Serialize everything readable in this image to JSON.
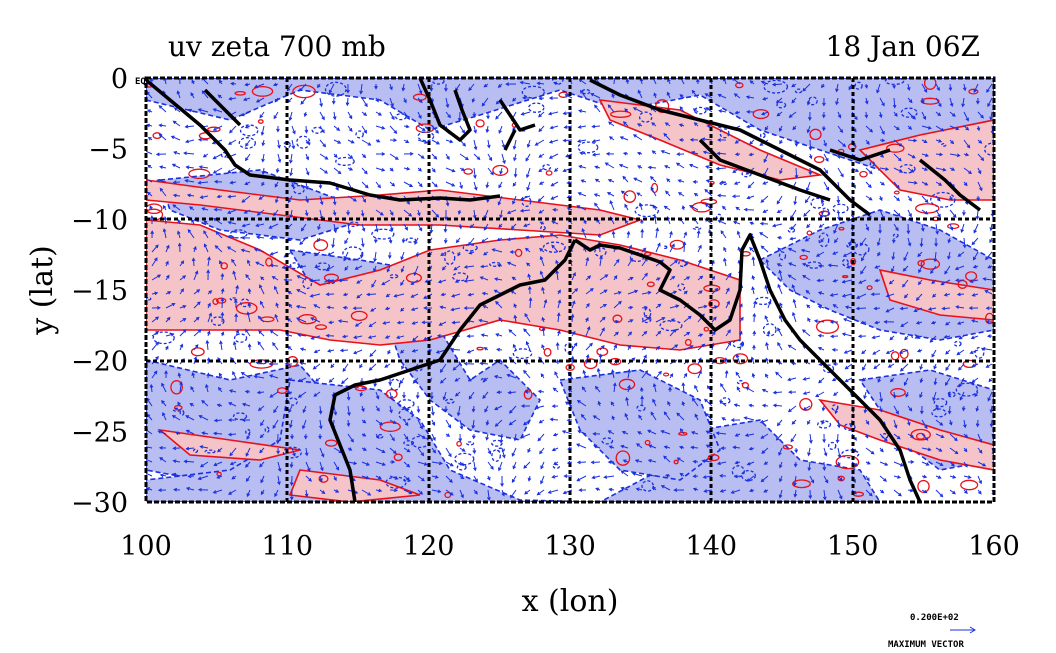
{
  "chart_data": {
    "type": "contour",
    "title": "uv zeta 700 mb",
    "subtitle": "18 Jan 06Z",
    "xlabel": "x (lon)",
    "ylabel": "y (lat)",
    "xlim": [
      100,
      160
    ],
    "ylim": [
      -30,
      0
    ],
    "xticks": [
      100,
      110,
      120,
      130,
      140,
      150,
      160
    ],
    "yticks": [
      0,
      -5,
      -10,
      -15,
      -20,
      -25,
      -30
    ],
    "xtick_labels": [
      "100",
      "110",
      "120",
      "130",
      "140",
      "150",
      "160"
    ],
    "ytick_labels": [
      "0",
      "−5",
      "−10",
      "−15",
      "−20",
      "−25",
      "−30"
    ],
    "ytick_suffix_zero": "EQ",
    "grid": true,
    "legend": {
      "vector_scale_label": "0.200E+02",
      "vector_caption": "MAXIMUM VECTOR",
      "position": "bottom-right"
    },
    "colors": {
      "positive_vorticity_fill": "#f4c4c8",
      "positive_vorticity_contour": "#e8101a",
      "negative_vorticity_fill": "#b8bdf2",
      "negative_vorticity_contour": "#1a30e0",
      "wind_vectors": "#1a30e0",
      "coastline": "#000000"
    }
  }
}
